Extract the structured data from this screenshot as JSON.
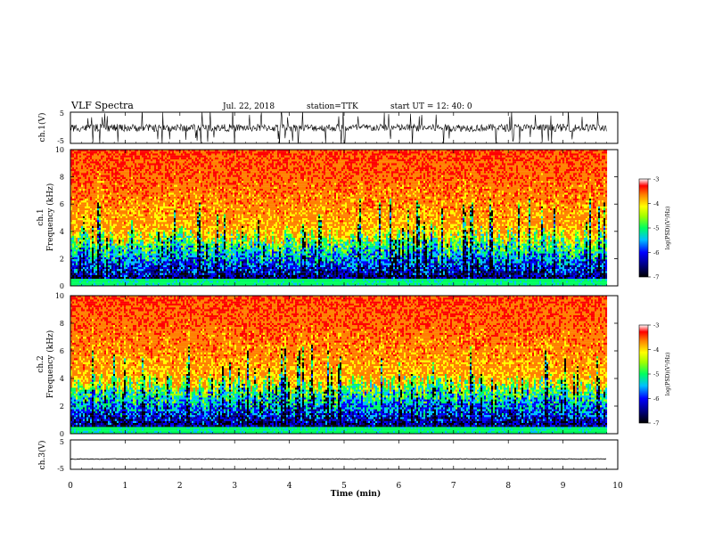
{
  "header": {
    "title": "VLF Spectra",
    "date": "Jul. 22, 2018",
    "station": "station=TTK",
    "start": "start UT =   12: 40: 0"
  },
  "chart_data": [
    {
      "type": "line",
      "ylabel": "ch.1(V)",
      "yticks": [
        "5",
        "-5"
      ],
      "ylim": [
        -5,
        5
      ],
      "xlim": [
        0,
        10
      ],
      "series": [
        {
          "values_description_mean": 0,
          "x_end": 9.8
        }
      ]
    },
    {
      "type": "heatmap",
      "ylabel_line1": "ch.1",
      "ylabel_line2": "Frequency (kHz)",
      "xlim": [
        0,
        10
      ],
      "ylim": [
        0,
        10
      ],
      "yticks": [
        "0",
        "2",
        "4",
        "6",
        "8",
        "10"
      ],
      "data_end_x": 9.8,
      "colorbar": {
        "ticks": [
          "-3",
          "-4",
          "-5",
          "-6",
          "-7"
        ],
        "label": "log(PSD)(V²/Hz)",
        "range": [
          -7,
          -3
        ]
      }
    },
    {
      "type": "heatmap",
      "ylabel_line1": "ch.2",
      "ylabel_line2": "Frequency (kHz)",
      "xlim": [
        0,
        10
      ],
      "ylim": [
        0,
        10
      ],
      "yticks": [
        "0",
        "2",
        "4",
        "6",
        "8",
        "10"
      ],
      "data_end_x": 9.8,
      "colorbar": {
        "ticks": [
          "-3",
          "-4",
          "-5",
          "-6",
          "-7"
        ],
        "label": "log(PSD)(V²/Hz)",
        "range": [
          -7,
          -3
        ]
      }
    },
    {
      "type": "line",
      "ylabel": "ch.3(V)",
      "yticks": [
        "5",
        "-5"
      ],
      "ylim": [
        -5,
        5
      ],
      "xlim": [
        0,
        10
      ],
      "series": [
        {
          "level": -1.5,
          "x_end": 9.8
        }
      ]
    }
  ],
  "xaxis": {
    "label": "Time (min)",
    "ticks": [
      "0",
      "1",
      "2",
      "3",
      "4",
      "5",
      "6",
      "7",
      "8",
      "9",
      "10"
    ]
  },
  "colors": {
    "background": "#ffffff",
    "axis": "#000000"
  }
}
